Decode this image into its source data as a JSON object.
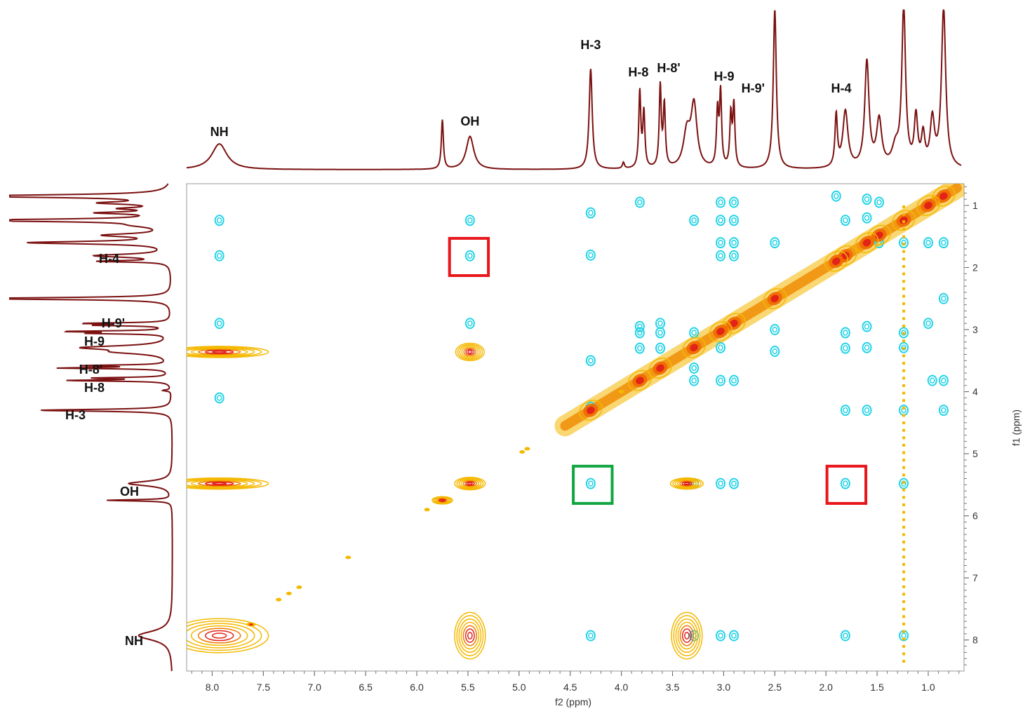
{
  "chart_data": {
    "type": "contour",
    "x_axis": {
      "label": "f2 (ppm)",
      "min": 8.25,
      "max": 0.65,
      "reversed": true,
      "ticks": [
        "8.0",
        "7.5",
        "7.0",
        "6.5",
        "6.0",
        "5.5",
        "5.0",
        "4.5",
        "4.0",
        "3.5",
        "3.0",
        "2.5",
        "2.0",
        "1.5",
        "1.0"
      ]
    },
    "y_axis": {
      "label": "f1 (ppm)",
      "min": 0.65,
      "max": 8.5,
      "position": "right",
      "ticks": [
        "1",
        "2",
        "3",
        "4",
        "5",
        "6",
        "7",
        "8"
      ]
    },
    "colors": {
      "positive": "#f5b800",
      "positive_core": "#e2231a",
      "negative": "#22d3e6",
      "projection": "#7b1010",
      "box_red": "#e8161b",
      "box_green": "#12a640",
      "frame": "#888888"
    },
    "top_projection_peaks": [
      {
        "ppm": 7.93,
        "height": 0.21,
        "width": 0.09
      },
      {
        "ppm": 5.75,
        "height": 0.4,
        "width": 0.012
      },
      {
        "ppm": 5.48,
        "height": 0.27,
        "width": 0.045
      },
      {
        "ppm": 4.3,
        "height": 0.82,
        "width": 0.018
      },
      {
        "ppm": 3.98,
        "height": 0.05,
        "width": 0.012
      },
      {
        "ppm": 3.82,
        "height": 0.62,
        "width": 0.012
      },
      {
        "ppm": 3.78,
        "height": 0.45,
        "width": 0.012
      },
      {
        "ppm": 3.62,
        "height": 0.66,
        "width": 0.012
      },
      {
        "ppm": 3.58,
        "height": 0.5,
        "width": 0.012
      },
      {
        "ppm": 3.36,
        "height": 0.28,
        "width": 0.04
      },
      {
        "ppm": 3.29,
        "height": 0.5,
        "width": 0.035
      },
      {
        "ppm": 3.06,
        "height": 0.45,
        "width": 0.012
      },
      {
        "ppm": 3.03,
        "height": 0.6,
        "width": 0.012
      },
      {
        "ppm": 2.93,
        "height": 0.42,
        "width": 0.012
      },
      {
        "ppm": 2.9,
        "height": 0.5,
        "width": 0.012
      },
      {
        "ppm": 2.5,
        "height": 1.3,
        "width": 0.018
      },
      {
        "ppm": 1.9,
        "height": 0.42,
        "width": 0.014
      },
      {
        "ppm": 1.81,
        "height": 0.46,
        "width": 0.03
      },
      {
        "ppm": 1.6,
        "height": 0.86,
        "width": 0.025
      },
      {
        "ppm": 1.48,
        "height": 0.38,
        "width": 0.03
      },
      {
        "ppm": 1.32,
        "height": 0.15,
        "width": 0.04
      },
      {
        "ppm": 1.24,
        "height": 1.3,
        "width": 0.022
      },
      {
        "ppm": 1.12,
        "height": 0.4,
        "width": 0.02
      },
      {
        "ppm": 1.05,
        "height": 0.25,
        "width": 0.02
      },
      {
        "ppm": 0.96,
        "height": 0.38,
        "width": 0.025
      },
      {
        "ppm": 0.85,
        "height": 1.3,
        "width": 0.025
      }
    ],
    "top_labels": [
      {
        "text": "NH",
        "ppm": 7.93
      },
      {
        "text": "OH",
        "ppm": 5.48
      },
      {
        "text": "H-3",
        "ppm": 4.3
      },
      {
        "text": "H-8",
        "ppm": 3.82
      },
      {
        "text": "H-8'",
        "ppm": 3.62
      },
      {
        "text": "H-9",
        "ppm": 3.03
      },
      {
        "text": "H-9'",
        "ppm": 2.85
      },
      {
        "text": "H-4",
        "ppm": 1.85
      }
    ],
    "side_labels": [
      {
        "text": "H-4",
        "ppm": 1.8
      },
      {
        "text": "H-9'",
        "ppm": 2.95
      },
      {
        "text": "H-9",
        "ppm": 3.1
      },
      {
        "text": "H-8'",
        "ppm": 3.58
      },
      {
        "text": "H-8",
        "ppm": 3.82
      },
      {
        "text": "H-3",
        "ppm": 4.3
      },
      {
        "text": "OH",
        "ppm": 5.48
      },
      {
        "text": "NH",
        "ppm": 7.93
      }
    ],
    "positive_peaks": [
      {
        "x": 7.93,
        "y": 7.93,
        "w": 0.48,
        "h": 0.55
      },
      {
        "x": 5.48,
        "y": 7.93,
        "w": 0.15,
        "h": 0.75
      },
      {
        "x": 3.36,
        "y": 7.93,
        "w": 0.15,
        "h": 0.75
      },
      {
        "x": 7.93,
        "y": 3.36,
        "w": 0.48,
        "h": 0.18
      },
      {
        "x": 5.48,
        "y": 3.36,
        "w": 0.14,
        "h": 0.28
      },
      {
        "x": 7.93,
        "y": 5.48,
        "w": 0.48,
        "h": 0.18
      },
      {
        "x": 5.48,
        "y": 5.48,
        "w": 0.15,
        "h": 0.2
      },
      {
        "x": 3.36,
        "y": 5.48,
        "w": 0.16,
        "h": 0.18
      },
      {
        "x": 5.75,
        "y": 5.75,
        "w": 0.1,
        "h": 0.12
      },
      {
        "x": 7.62,
        "y": 7.75,
        "w": 0.04,
        "h": 0.05
      }
    ],
    "diagonal_peaks": [
      0.85,
      1.0,
      1.24,
      1.48,
      1.6,
      1.81,
      1.9,
      2.5,
      2.9,
      3.03,
      3.29,
      3.62,
      3.82,
      4.3
    ],
    "diagonal_dots": [
      [
        7.35,
        7.35
      ],
      [
        7.25,
        7.25
      ],
      [
        7.15,
        7.15
      ],
      [
        6.67,
        6.67
      ],
      [
        5.9,
        5.9
      ],
      [
        4.97,
        4.97
      ],
      [
        4.92,
        4.92
      ],
      [
        4.0,
        4.0
      ]
    ],
    "negative_peaks": [
      [
        7.93,
        1.24
      ],
      [
        7.93,
        1.81
      ],
      [
        7.93,
        2.9
      ],
      [
        5.48,
        1.24
      ],
      [
        5.48,
        1.81
      ],
      [
        5.48,
        2.9
      ],
      [
        4.3,
        1.12
      ],
      [
        4.3,
        1.8
      ],
      [
        4.3,
        5.48
      ],
      [
        4.3,
        7.93
      ],
      [
        4.3,
        3.5
      ],
      [
        4.3,
        4.25
      ],
      [
        3.82,
        0.95
      ],
      [
        3.82,
        3.05
      ],
      [
        3.82,
        3.3
      ],
      [
        3.62,
        3.05
      ],
      [
        3.62,
        3.3
      ],
      [
        3.29,
        1.24
      ],
      [
        3.29,
        3.05
      ],
      [
        3.29,
        3.62
      ],
      [
        3.29,
        3.82
      ],
      [
        3.29,
        5.48
      ],
      [
        3.29,
        7.93
      ],
      [
        3.03,
        0.95
      ],
      [
        3.03,
        1.24
      ],
      [
        3.03,
        1.6
      ],
      [
        3.03,
        1.81
      ],
      [
        3.03,
        5.48
      ],
      [
        3.03,
        7.93
      ],
      [
        3.03,
        3.29
      ],
      [
        3.03,
        3.82
      ],
      [
        2.9,
        0.95
      ],
      [
        2.9,
        1.24
      ],
      [
        2.9,
        1.6
      ],
      [
        2.9,
        1.81
      ],
      [
        2.9,
        3.82
      ],
      [
        2.9,
        5.48
      ],
      [
        2.9,
        7.93
      ],
      [
        1.9,
        0.85
      ],
      [
        1.81,
        1.24
      ],
      [
        1.81,
        4.3
      ],
      [
        1.81,
        3.05
      ],
      [
        1.81,
        3.3
      ],
      [
        1.81,
        5.48
      ],
      [
        1.81,
        7.93
      ],
      [
        1.6,
        0.9
      ],
      [
        1.6,
        1.2
      ],
      [
        1.6,
        2.95
      ],
      [
        1.6,
        3.29
      ],
      [
        1.6,
        4.3
      ],
      [
        1.48,
        0.95
      ],
      [
        1.48,
        1.6
      ],
      [
        1.24,
        1.6
      ],
      [
        1.24,
        3.05
      ],
      [
        1.24,
        3.29
      ],
      [
        1.24,
        4.3
      ],
      [
        1.24,
        5.48
      ],
      [
        1.24,
        7.93
      ],
      [
        1.0,
        1.6
      ],
      [
        1.0,
        2.9
      ],
      [
        0.85,
        1.6
      ],
      [
        0.85,
        2.5
      ],
      [
        0.85,
        3.82
      ],
      [
        0.85,
        4.3
      ],
      [
        0.96,
        3.82
      ],
      [
        2.5,
        1.6
      ],
      [
        2.5,
        3.0
      ],
      [
        2.5,
        3.35
      ],
      [
        3.62,
        2.9
      ],
      [
        3.82,
        2.95
      ],
      [
        7.93,
        4.1
      ]
    ],
    "boxes": [
      {
        "color": "red",
        "x1": 5.68,
        "x2": 5.3,
        "y1": 1.53,
        "y2": 2.13
      },
      {
        "color": "green",
        "x1": 4.47,
        "x2": 4.09,
        "y1": 5.2,
        "y2": 5.8
      },
      {
        "color": "red",
        "x1": 1.99,
        "x2": 1.61,
        "y1": 5.2,
        "y2": 5.8
      }
    ]
  }
}
